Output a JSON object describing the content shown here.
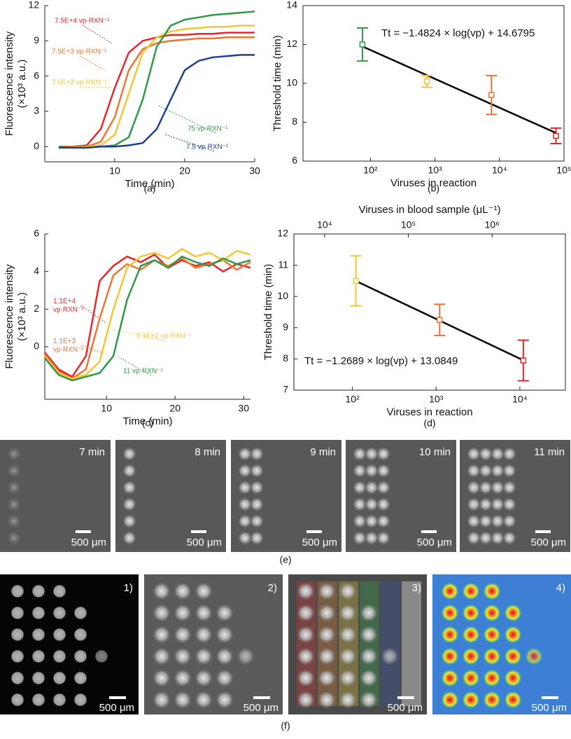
{
  "chart_data": [
    {
      "type": "line",
      "caption": "(a)",
      "xlabel": "Time (min)",
      "ylabel": [
        "Fluorescence intensity",
        "(×10³ a.u.)"
      ],
      "x": [
        2,
        4,
        6,
        8,
        10,
        12,
        14,
        16,
        18,
        20,
        22,
        24,
        26,
        28,
        30
      ],
      "xlim": [
        0,
        30
      ],
      "xticks": [
        10,
        20,
        30
      ],
      "ylim": [
        -1.3,
        12
      ],
      "yticks": [
        0,
        3,
        6,
        9,
        12
      ],
      "series": [
        {
          "name": "7.5E+4 vp·RXN⁻¹",
          "color": "#e8262a",
          "values": [
            0,
            0,
            0.1,
            1.5,
            5,
            8,
            9,
            9.3,
            9.5,
            9.5,
            9.6,
            9.6,
            9.7,
            9.7,
            9.7
          ]
        },
        {
          "name": "7.5E+3 vp·RXN⁻¹",
          "color": "#ee7433",
          "values": [
            0,
            0,
            0,
            0.4,
            2.5,
            6.5,
            8.3,
            8.8,
            9,
            9.1,
            9.2,
            9.2,
            9.3,
            9.3,
            9.3
          ]
        },
        {
          "name": "7.5E+2 vp·RXN⁻¹",
          "color": "#f6c632",
          "values": [
            0,
            -0.1,
            0,
            0.1,
            1,
            4.5,
            8,
            9.3,
            9.8,
            10,
            10.1,
            10.2,
            10.2,
            10.3,
            10.3
          ]
        },
        {
          "name": "75 vp·RXN⁻¹",
          "color": "#2e9a48",
          "values": [
            0,
            -0.1,
            -0.1,
            0,
            0.1,
            0.8,
            4,
            8.5,
            10.3,
            10.8,
            11,
            11.2,
            11.3,
            11.4,
            11.5
          ]
        },
        {
          "name": "7.5 vp·RXN⁻¹",
          "color": "#1f3f8f",
          "values": [
            -0.1,
            -0.1,
            -0.1,
            0,
            0,
            0.1,
            0.3,
            1.5,
            4,
            6.5,
            7.3,
            7.6,
            7.7,
            7.8,
            7.8
          ]
        }
      ]
    },
    {
      "type": "scatter",
      "caption": "(b)",
      "xlabel": "Viruses in reaction",
      "ylabel": [
        "Threshold time (min)"
      ],
      "log_x": true,
      "frame": true,
      "x": [
        75,
        750,
        7500,
        75000
      ],
      "values": [
        12.0,
        10.1,
        9.4,
        7.3
      ],
      "errors": [
        0.85,
        0.3,
        1.0,
        0.4
      ],
      "colors": [
        "#2e9a48",
        "#f6c632",
        "#ee7433",
        "#e8262a"
      ],
      "fit": {
        "x": [
          75,
          75000
        ],
        "values": [
          11.9,
          7.45
        ]
      },
      "equation": "Tt = −1.4824 × log(vp) + 14.6795",
      "xlim": [
        9,
        100000
      ],
      "xticks": [
        {
          "value": 100,
          "label": "10²"
        },
        {
          "value": 1000,
          "label": "10³"
        },
        {
          "value": 10000,
          "label": "10⁴"
        },
        {
          "value": 100000,
          "label": "10⁵"
        }
      ],
      "ylim": [
        6,
        14
      ],
      "yticks": [
        6,
        8,
        10,
        12,
        14
      ]
    },
    {
      "type": "line",
      "caption": "(c)",
      "xlabel": "Time (min)",
      "ylabel": [
        "Fluorescence intensity",
        "(×10³ a.u.)"
      ],
      "x": [
        1,
        3,
        5,
        7,
        9,
        11,
        13,
        15,
        17,
        19,
        21,
        23,
        25,
        27,
        29,
        31
      ],
      "xlim": [
        1,
        31
      ],
      "xticks": [
        10,
        20,
        30
      ],
      "ylim": [
        -2.8,
        6
      ],
      "yticks": [
        0,
        2,
        4,
        6
      ],
      "series": [
        {
          "name": "1.1E+4 vp·RXN⁻¹",
          "color": "#e8262a",
          "values": [
            -0.3,
            -1.2,
            -1.6,
            -0.5,
            3.5,
            4.3,
            4.8,
            4.5,
            4.9,
            4.2,
            4.6,
            4.3,
            4.5,
            4.0,
            4.4,
            4.2
          ]
        },
        {
          "name": "1.1E+3 vp·RXN⁻¹",
          "color": "#ee7433",
          "values": [
            -0.4,
            -1.3,
            -1.7,
            -1.2,
            1.5,
            3.8,
            4.4,
            4.1,
            4.6,
            4.3,
            4.7,
            4.2,
            4.4,
            4.6,
            4.1,
            4.5
          ]
        },
        {
          "name": "1.1E+2 vp·RXN⁻¹",
          "color": "#f6c632",
          "values": [
            -0.5,
            -1.4,
            -1.7,
            -1.5,
            -0.8,
            2.0,
            4.2,
            4.8,
            5.0,
            4.7,
            5.2,
            4.8,
            5.0,
            4.6,
            5.1,
            4.9
          ]
        },
        {
          "name": "11 vp·RXN⁻¹",
          "color": "#2e9a48",
          "values": [
            -0.6,
            -1.5,
            -1.8,
            -1.6,
            -1.4,
            -0.5,
            2.5,
            4.3,
            4.6,
            4.2,
            4.8,
            4.5,
            4.3,
            4.7,
            4.4,
            4.6
          ]
        }
      ]
    },
    {
      "type": "scatter",
      "caption": "(d)",
      "xlabel": "Viruses in reaction",
      "ylabel": [
        "Threshold time (min)"
      ],
      "log_x": true,
      "frame": true,
      "x2label": "Viruses in blood sample (μL⁻¹)",
      "x": [
        110,
        1100,
        11000
      ],
      "values": [
        10.5,
        9.25,
        7.95
      ],
      "errors": [
        0.8,
        0.5,
        0.65
      ],
      "colors": [
        "#f6c632",
        "#ee7433",
        "#e8262a"
      ],
      "fit": {
        "x": [
          110,
          11000
        ],
        "values": [
          10.495,
          7.957
        ]
      },
      "equation": "Tt = −1.2689 × log(vp) + 13.0849",
      "xlim": [
        20,
        35000
      ],
      "xticks": [
        {
          "value": 100,
          "label": "10²"
        },
        {
          "value": 1000,
          "label": "10³"
        },
        {
          "value": 10000,
          "label": "10⁴"
        }
      ],
      "x2lim": [
        4300,
        7500000
      ],
      "x2ticks": [
        {
          "value": 10000,
          "label": "10⁴"
        },
        {
          "value": 100000,
          "label": "10⁵"
        },
        {
          "value": 1000000,
          "label": "10⁶"
        }
      ],
      "ylim": [
        7,
        12
      ],
      "yticks": [
        7,
        8,
        9,
        10,
        11,
        12
      ]
    }
  ],
  "panel_e": {
    "caption": "(e)",
    "scale_bar": "500 μm",
    "frames": [
      "7 min",
      "8 min",
      "9 min",
      "10 min",
      "11 min"
    ]
  },
  "panel_f": {
    "caption": "(f)",
    "scale_bar": "500 μm",
    "frames": [
      "1)",
      "2)",
      "3)",
      "4)"
    ]
  }
}
